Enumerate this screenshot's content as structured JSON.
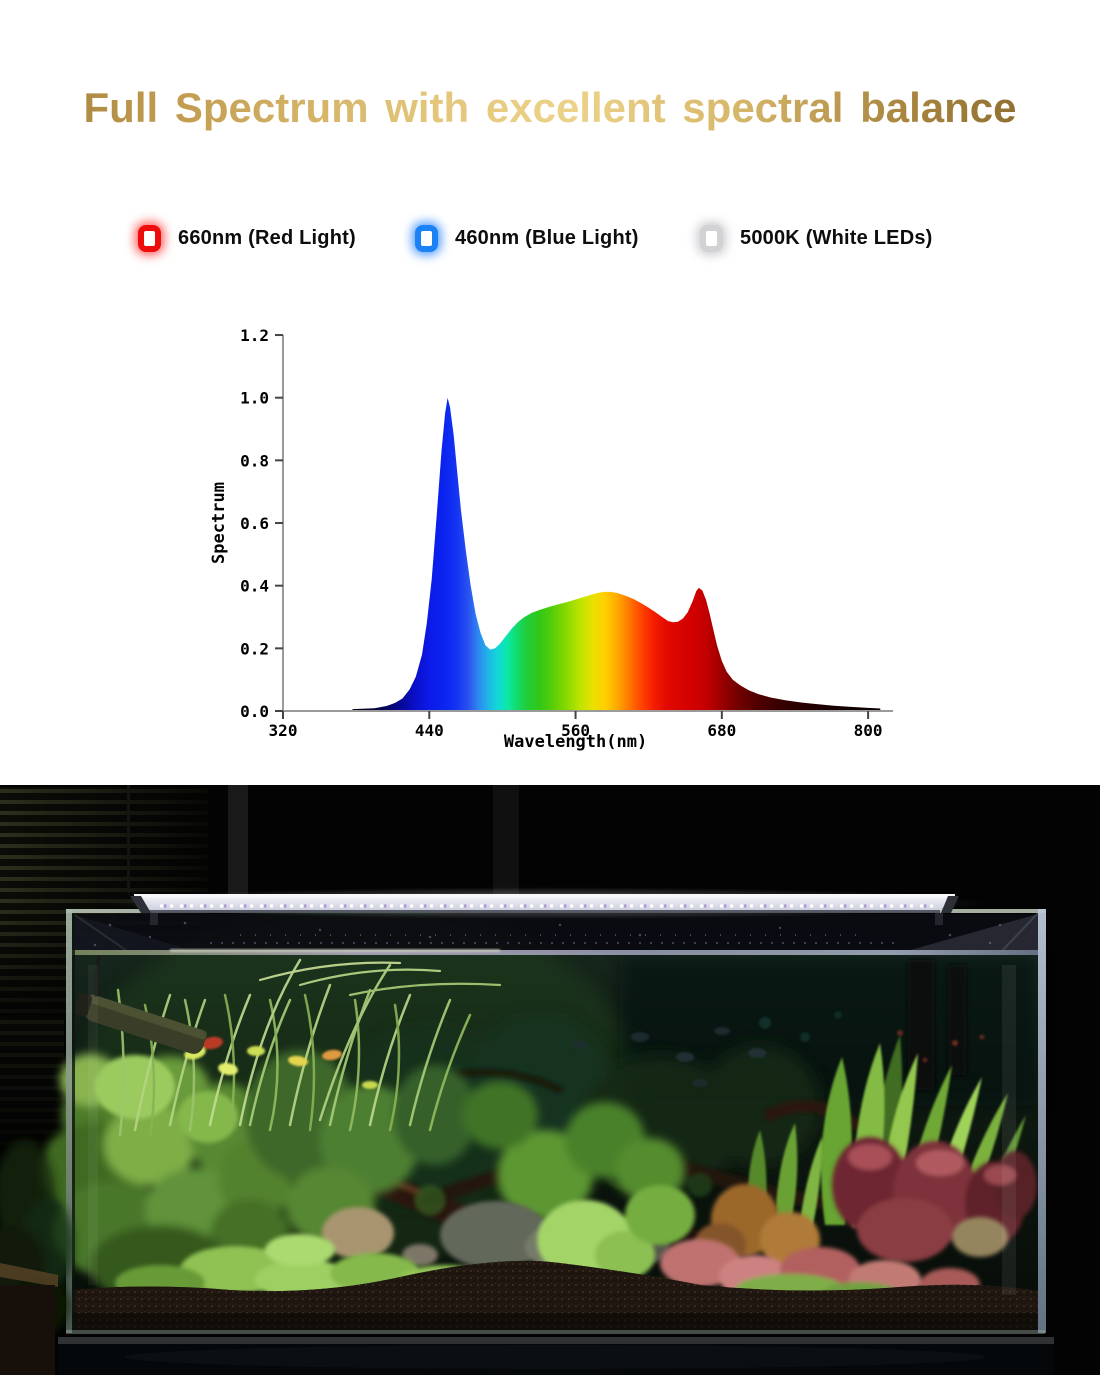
{
  "title": {
    "text": "Full Spectrum with excellent spectral balance"
  },
  "legend": {
    "items": [
      {
        "label": "660nm (Red Light)",
        "color": "#ee0d0d",
        "glow": "rgba(255,40,40,0.75)"
      },
      {
        "label": "460nm (Blue Light)",
        "color": "#1b82f5",
        "glow": "rgba(40,130,255,0.8)"
      },
      {
        "label": "5000K (White LEDs)",
        "color": "#d2d2d4",
        "glow": "rgba(185,185,192,0.75)"
      }
    ]
  },
  "chart_data": {
    "type": "area",
    "title": "",
    "xlabel": "Wavelength(nm)",
    "ylabel": "Spectrum",
    "xlim": [
      320,
      818
    ],
    "ylim": [
      0,
      1.2
    ],
    "x_ticks": [
      "320",
      "440",
      "560",
      "680",
      "800"
    ],
    "y_ticks": [
      "0.0",
      "0.2",
      "0.4",
      "0.6",
      "0.8",
      "1.0",
      "1.2"
    ],
    "grid": false,
    "legend_position": "none",
    "points": [
      [
        377,
        0.006
      ],
      [
        385,
        0.007
      ],
      [
        395,
        0.009
      ],
      [
        405,
        0.016
      ],
      [
        412,
        0.026
      ],
      [
        418,
        0.04
      ],
      [
        424,
        0.07
      ],
      [
        429,
        0.11
      ],
      [
        434,
        0.18
      ],
      [
        438,
        0.28
      ],
      [
        442,
        0.42
      ],
      [
        446,
        0.62
      ],
      [
        450,
        0.83
      ],
      [
        453,
        0.95
      ],
      [
        455,
        1.0
      ],
      [
        457,
        0.97
      ],
      [
        460,
        0.88
      ],
      [
        463,
        0.76
      ],
      [
        466,
        0.64
      ],
      [
        470,
        0.51
      ],
      [
        474,
        0.4
      ],
      [
        478,
        0.31
      ],
      [
        482,
        0.25
      ],
      [
        486,
        0.21
      ],
      [
        490,
        0.196
      ],
      [
        494,
        0.2
      ],
      [
        498,
        0.215
      ],
      [
        503,
        0.24
      ],
      [
        508,
        0.265
      ],
      [
        513,
        0.285
      ],
      [
        518,
        0.3
      ],
      [
        524,
        0.313
      ],
      [
        530,
        0.322
      ],
      [
        538,
        0.332
      ],
      [
        546,
        0.341
      ],
      [
        554,
        0.349
      ],
      [
        562,
        0.358
      ],
      [
        570,
        0.368
      ],
      [
        577,
        0.376
      ],
      [
        583,
        0.38
      ],
      [
        589,
        0.38
      ],
      [
        595,
        0.376
      ],
      [
        601,
        0.368
      ],
      [
        607,
        0.358
      ],
      [
        613,
        0.346
      ],
      [
        619,
        0.332
      ],
      [
        625,
        0.317
      ],
      [
        631,
        0.3
      ],
      [
        636,
        0.287
      ],
      [
        640,
        0.283
      ],
      [
        644,
        0.285
      ],
      [
        648,
        0.295
      ],
      [
        652,
        0.315
      ],
      [
        656,
        0.35
      ],
      [
        659,
        0.382
      ],
      [
        661,
        0.393
      ],
      [
        664,
        0.385
      ],
      [
        667,
        0.355
      ],
      [
        670,
        0.31
      ],
      [
        673,
        0.26
      ],
      [
        676,
        0.21
      ],
      [
        680,
        0.16
      ],
      [
        684,
        0.125
      ],
      [
        689,
        0.1
      ],
      [
        695,
        0.082
      ],
      [
        702,
        0.066
      ],
      [
        710,
        0.054
      ],
      [
        720,
        0.043
      ],
      [
        732,
        0.034
      ],
      [
        745,
        0.027
      ],
      [
        758,
        0.022
      ],
      [
        772,
        0.017
      ],
      [
        786,
        0.013
      ],
      [
        800,
        0.01
      ],
      [
        810,
        0.008
      ]
    ],
    "peaks": {
      "blue_nm": 455,
      "blue_value": 1.0,
      "red_nm": 661,
      "red_value": 0.39,
      "white_hump_nm": 585,
      "white_hump_value": 0.38,
      "dip_nm": 490,
      "dip_value": 0.2
    },
    "gradient_stops": [
      [
        377,
        "#000006"
      ],
      [
        400,
        "#04064a"
      ],
      [
        415,
        "#06088f"
      ],
      [
        428,
        "#0a10c8"
      ],
      [
        440,
        "#0c1ae8"
      ],
      [
        452,
        "#0b24f0"
      ],
      [
        462,
        "#1333f2"
      ],
      [
        472,
        "#2a52f0"
      ],
      [
        480,
        "#2e86f0"
      ],
      [
        488,
        "#20b4e8"
      ],
      [
        496,
        "#10d8d8"
      ],
      [
        504,
        "#0ce8a8"
      ],
      [
        512,
        "#12dc6a"
      ],
      [
        520,
        "#22cc3a"
      ],
      [
        530,
        "#30c818"
      ],
      [
        540,
        "#52cc0a"
      ],
      [
        552,
        "#86d800"
      ],
      [
        564,
        "#c0e400"
      ],
      [
        574,
        "#e8e000"
      ],
      [
        584,
        "#ffd000"
      ],
      [
        594,
        "#ffaa00"
      ],
      [
        604,
        "#ff7700"
      ],
      [
        614,
        "#ff4400"
      ],
      [
        624,
        "#f41e00"
      ],
      [
        634,
        "#e40b00"
      ],
      [
        646,
        "#d80400"
      ],
      [
        658,
        "#d00000"
      ],
      [
        668,
        "#c00000"
      ],
      [
        678,
        "#a00000"
      ],
      [
        690,
        "#7c0000"
      ],
      [
        705,
        "#580000"
      ],
      [
        725,
        "#3a0000"
      ],
      [
        750,
        "#240000"
      ],
      [
        775,
        "#160000"
      ],
      [
        810,
        "#0c0000"
      ]
    ],
    "axis_color": "#9a9a9a",
    "tick_color": "#444444"
  },
  "photo": {
    "led_bar_color": "#e9ecf4",
    "led_dot_purple": "#a98fd8",
    "water_color": "#0d1c14",
    "substrate_color": "#221912",
    "glass_edge_right": "#aebfd2",
    "glass_edge_left": "#9fb3a0"
  }
}
